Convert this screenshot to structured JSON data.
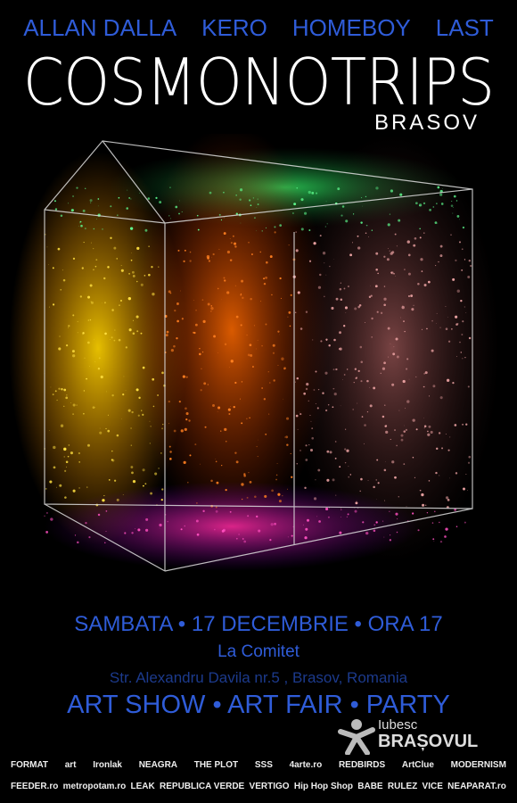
{
  "header": {
    "artists": [
      "ALLAN DALLA",
      "KERO",
      "HOMEBOY",
      "LAST"
    ],
    "title": "COSMONOTRIPS",
    "city": "BRASOV"
  },
  "event": {
    "date_line": "SAMBATA • 17 DECEMBRIE • ORA 17",
    "venue": "La Comitet",
    "address": "Str. Alexandru  Davila nr.5 , Brasov, Romania",
    "program": "ART SHOW • ART FAIR • PARTY"
  },
  "badge": {
    "line1": "Iubesc",
    "line2": "BRAȘOVUL"
  },
  "sponsors": {
    "row1": [
      "FORMAT",
      "art",
      "Ironlak",
      "NEAGRA",
      "THE PLOT",
      "SSS",
      "4arte.ro",
      "REDBIRDS",
      "ArtClue",
      "MODERNISM"
    ],
    "row2": [
      "FEEDER.ro",
      "metropotam.ro",
      "LEAK",
      "REPUBLICA VERDE",
      "VERTIGO",
      "Hip Hop Shop",
      "BABE",
      "RULEZ",
      "VICE",
      "NEAPARAT.ro"
    ]
  }
}
